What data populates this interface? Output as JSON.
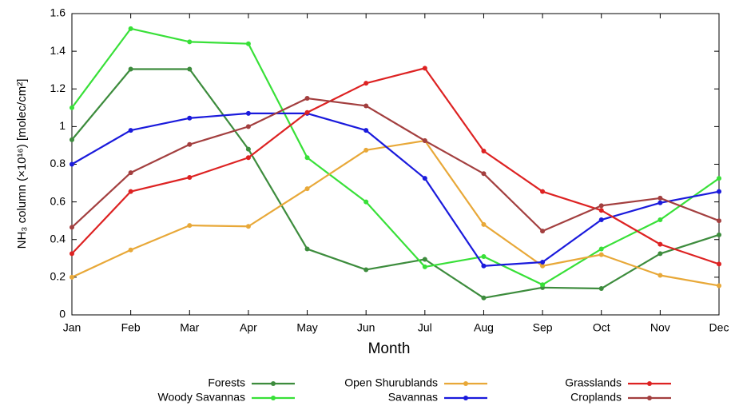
{
  "chart_data": {
    "type": "line",
    "x_label": "Month",
    "y_label": "NH₃ column (×10¹⁶) [molec/cm²]",
    "categories": [
      "Jan",
      "Feb",
      "Mar",
      "Apr",
      "May",
      "Jun",
      "Jul",
      "Aug",
      "Sep",
      "Oct",
      "Nov",
      "Dec"
    ],
    "series": [
      {
        "name": "Forests",
        "color": "#3d8c3d",
        "values": [
          0.93,
          1.305,
          1.305,
          0.88,
          0.35,
          0.24,
          0.295,
          0.09,
          0.145,
          0.14,
          0.325,
          0.425
        ]
      },
      {
        "name": "Woody Savannas",
        "color": "#38e038",
        "values": [
          1.1,
          1.52,
          1.45,
          1.44,
          0.835,
          0.6,
          0.255,
          0.31,
          0.16,
          0.35,
          0.505,
          0.725
        ]
      },
      {
        "name": "Open Shurublands",
        "color": "#e8a838",
        "values": [
          0.2,
          0.345,
          0.475,
          0.47,
          0.67,
          0.875,
          0.925,
          0.48,
          0.26,
          0.32,
          0.21,
          0.155
        ]
      },
      {
        "name": "Savannas",
        "color": "#1a1adc",
        "values": [
          0.8,
          0.98,
          1.045,
          1.07,
          1.07,
          0.98,
          0.725,
          0.26,
          0.28,
          0.505,
          0.595,
          0.655
        ]
      },
      {
        "name": "Grasslands",
        "color": "#dd2222",
        "values": [
          0.325,
          0.655,
          0.73,
          0.835,
          1.075,
          1.23,
          1.31,
          0.87,
          0.655,
          0.555,
          0.375,
          0.27
        ]
      },
      {
        "name": "Croplands",
        "color": "#a33f3f",
        "values": [
          0.465,
          0.755,
          0.905,
          1.0,
          1.15,
          1.11,
          0.925,
          0.75,
          0.445,
          0.58,
          0.62,
          0.5
        ]
      }
    ],
    "ylim": [
      0,
      1.6
    ],
    "yticks": [
      0,
      0.2,
      0.4,
      0.6,
      0.8,
      1,
      1.2,
      1.4,
      1.6
    ],
    "grid": false,
    "legend": "bottom"
  }
}
